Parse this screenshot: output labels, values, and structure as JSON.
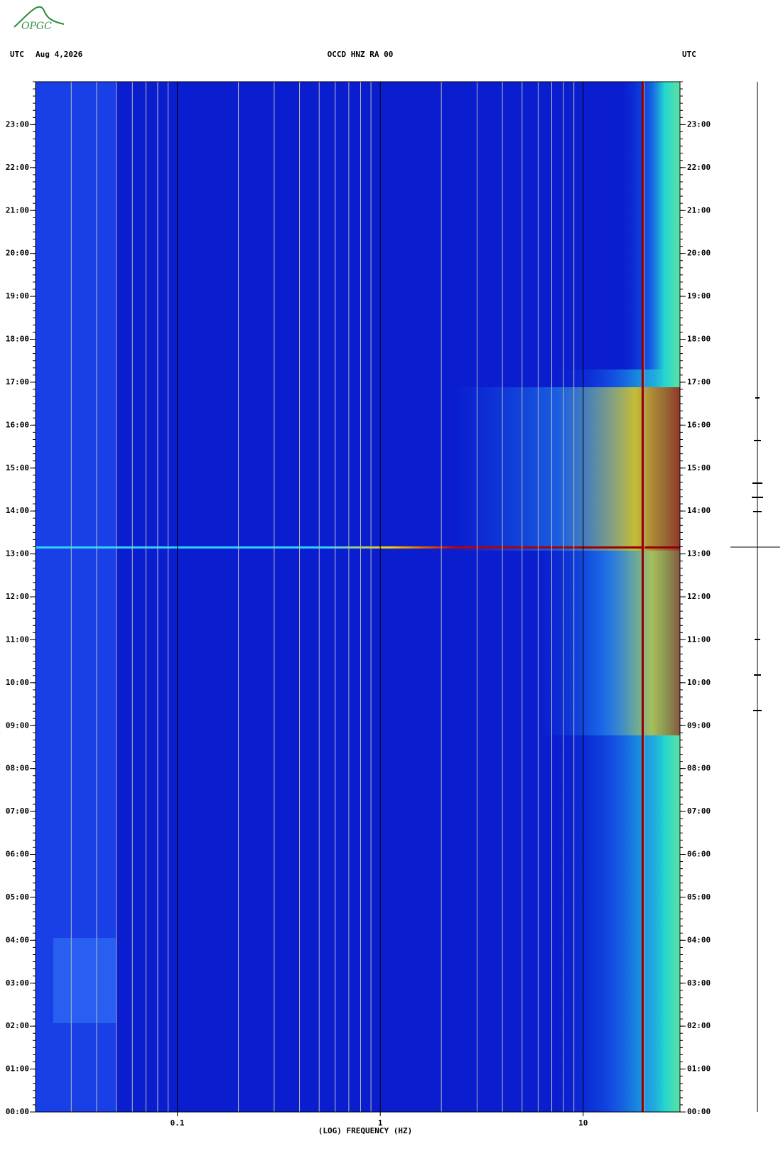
{
  "logo": "OPGC",
  "chart_data": {
    "type": "spectrogram",
    "title": "OCCD HNZ RA 00",
    "date": "Aug 4,2026",
    "left_label": "UTC",
    "right_label": "UTC",
    "xlabel": "(LOG) FREQUENCY (HZ)",
    "xscale": "log",
    "xlim": [
      0.02,
      30
    ],
    "xticks": [
      0.1,
      1,
      10
    ],
    "xminorticks": [
      0.03,
      0.04,
      0.05,
      0.06,
      0.07,
      0.08,
      0.09,
      0.2,
      0.3,
      0.4,
      0.5,
      0.6,
      0.7,
      0.8,
      0.9,
      2,
      3,
      4,
      5,
      6,
      7,
      8,
      9,
      20
    ],
    "ylim": [
      0,
      24
    ],
    "yticks": [
      {
        "value": 0,
        "label": "00:00"
      },
      {
        "value": 1,
        "label": "01:00"
      },
      {
        "value": 2,
        "label": "02:00"
      },
      {
        "value": 3,
        "label": "03:00"
      },
      {
        "value": 4,
        "label": "04:00"
      },
      {
        "value": 5,
        "label": "05:00"
      },
      {
        "value": 6,
        "label": "06:00"
      },
      {
        "value": 7,
        "label": "07:00"
      },
      {
        "value": 8,
        "label": "08:00"
      },
      {
        "value": 9,
        "label": "09:00"
      },
      {
        "value": 10,
        "label": "10:00"
      },
      {
        "value": 11,
        "label": "11:00"
      },
      {
        "value": 12,
        "label": "12:00"
      },
      {
        "value": 13,
        "label": "13:00"
      },
      {
        "value": 14,
        "label": "14:00"
      },
      {
        "value": 15,
        "label": "15:00"
      },
      {
        "value": 16,
        "label": "16:00"
      },
      {
        "value": 17,
        "label": "17:00"
      },
      {
        "value": 18,
        "label": "18:00"
      },
      {
        "value": 19,
        "label": "19:00"
      },
      {
        "value": 20,
        "label": "20:00"
      },
      {
        "value": 21,
        "label": "21:00"
      },
      {
        "value": 22,
        "label": "22:00"
      },
      {
        "value": 23,
        "label": "23:00"
      }
    ]
  }
}
